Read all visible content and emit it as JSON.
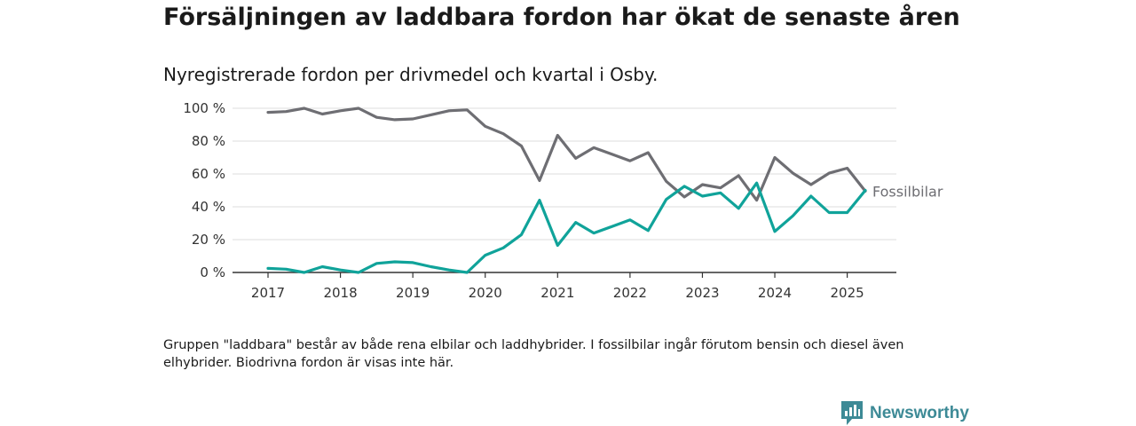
{
  "title": "Försäljningen av laddbara fordon har ökat de senaste åren",
  "subtitle": "Nyregistrerade fordon per drivmedel och kvartal i Osby.",
  "footnote": "Gruppen \"laddbara\" består av både rena elbilar och laddhybrider. I fossilbilar ingår förutom bensin och diesel även elhybrider. Biodrivna fordon är visas inte här.",
  "brand": {
    "name": "Newsworthy",
    "icon": "newsworthy-logo-icon"
  },
  "colors": {
    "fossil": "#6e6e73",
    "laddbara": "#10a39a",
    "grid": "#dddddd",
    "axis": "#333333"
  },
  "chart_data": {
    "type": "line",
    "x_unit": "quarter",
    "x": [
      "2017-Q1",
      "2017-Q2",
      "2017-Q3",
      "2017-Q4",
      "2018-Q1",
      "2018-Q2",
      "2018-Q3",
      "2018-Q4",
      "2019-Q1",
      "2019-Q2",
      "2019-Q3",
      "2019-Q4",
      "2020-Q1",
      "2020-Q2",
      "2020-Q3",
      "2020-Q4",
      "2021-Q1",
      "2021-Q2",
      "2021-Q3",
      "2021-Q4",
      "2022-Q1",
      "2022-Q2",
      "2022-Q3",
      "2022-Q4",
      "2023-Q1",
      "2023-Q2",
      "2023-Q3",
      "2023-Q4",
      "2024-Q1",
      "2024-Q2",
      "2024-Q3",
      "2024-Q4",
      "2025-Q1",
      "2025-Q2"
    ],
    "x_tick_labels": [
      "2017",
      "2018",
      "2019",
      "2020",
      "2021",
      "2022",
      "2023",
      "2024",
      "2025"
    ],
    "y_tick_labels": [
      "0 %",
      "20 %",
      "40 %",
      "60 %",
      "80 %",
      "100 %"
    ],
    "ylim": [
      0,
      100
    ],
    "grid": true,
    "series": [
      {
        "name": "Fossilbilar",
        "color_key": "fossil",
        "values": [
          97.5,
          98,
          100,
          96.5,
          98.5,
          100,
          94.5,
          93,
          93.5,
          96,
          98.5,
          99,
          89,
          84.5,
          77,
          56,
          83.5,
          69.5,
          76,
          72,
          68,
          73,
          55.5,
          46,
          53.5,
          51.5,
          59,
          44,
          70,
          60.5,
          53.5,
          60.5,
          63.5,
          49.5
        ]
      },
      {
        "name": "",
        "color_key": "laddbara",
        "values": [
          2.5,
          2,
          0,
          3.5,
          1.5,
          0,
          5.5,
          6.5,
          6,
          3.5,
          1.5,
          0,
          10.5,
          15,
          23,
          44,
          16.5,
          30.5,
          24,
          28,
          32,
          25.5,
          44.5,
          52.5,
          46.5,
          48.5,
          39,
          54.5,
          25,
          34.5,
          46.5,
          36.5,
          36.5,
          50
        ]
      }
    ],
    "xlabel": "",
    "ylabel": ""
  }
}
